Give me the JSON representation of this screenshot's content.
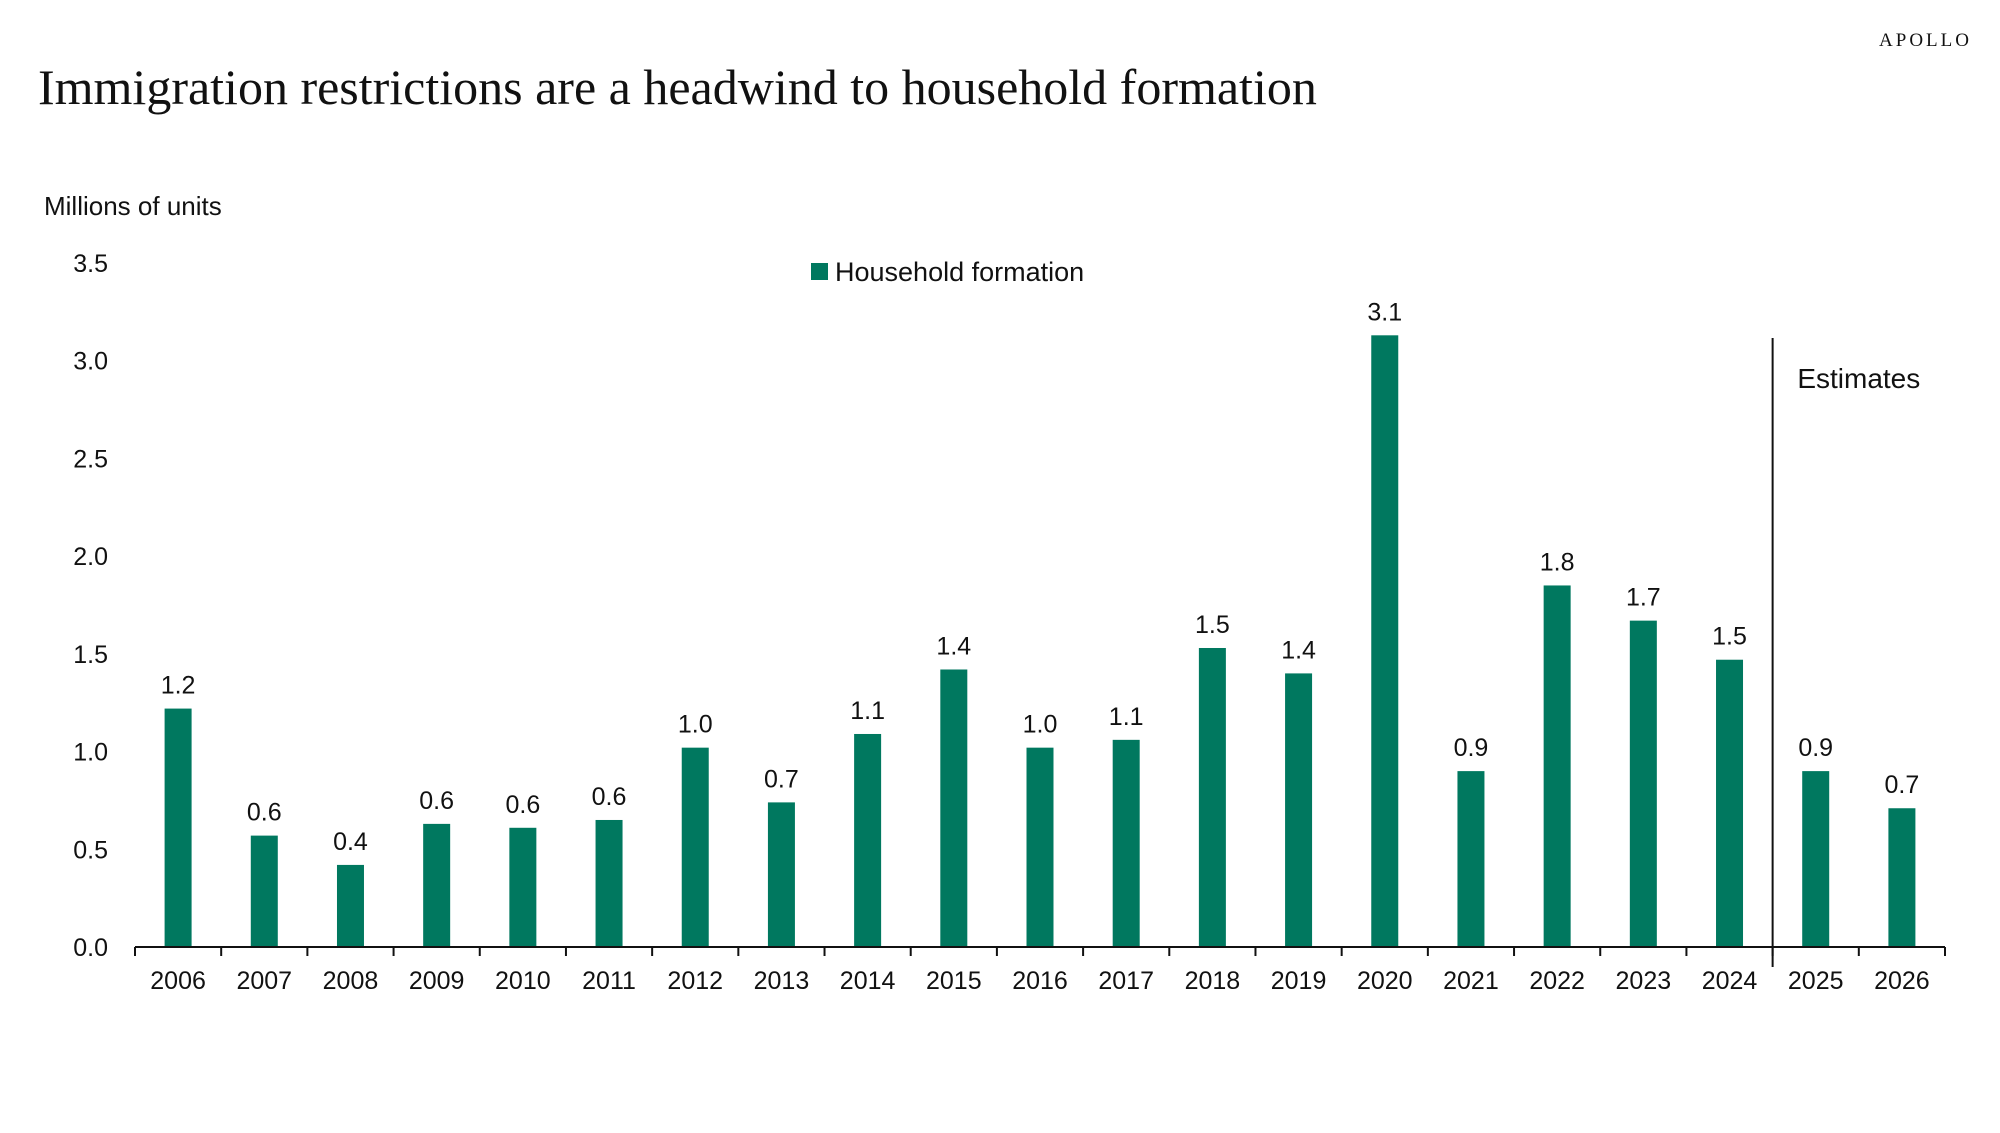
{
  "brand": "APOLLO",
  "title": "Immigration restrictions are a headwind to household formation",
  "chart_data": {
    "type": "bar",
    "title": "Immigration restrictions are a headwind to household formation",
    "ylabel": "Millions of units",
    "xlabel": "",
    "ylim": [
      0,
      3.5
    ],
    "yticks": [
      "0.0",
      "0.5",
      "1.0",
      "1.5",
      "2.0",
      "2.5",
      "3.0",
      "3.5"
    ],
    "categories": [
      "2006",
      "2007",
      "2008",
      "2009",
      "2010",
      "2011",
      "2012",
      "2013",
      "2014",
      "2015",
      "2016",
      "2017",
      "2018",
      "2019",
      "2020",
      "2021",
      "2022",
      "2023",
      "2024",
      "2025",
      "2026"
    ],
    "series": [
      {
        "name": "Household formation",
        "color": "#00785F",
        "values": [
          1.22,
          0.57,
          0.42,
          0.63,
          0.61,
          0.65,
          1.02,
          0.74,
          1.09,
          1.42,
          1.02,
          1.06,
          1.53,
          1.4,
          3.13,
          0.9,
          1.85,
          1.67,
          1.47,
          0.9,
          0.71
        ],
        "labels": [
          "1.2",
          "0.6",
          "0.4",
          "0.6",
          "0.6",
          "0.6",
          "1.0",
          "0.7",
          "1.1",
          "1.4",
          "1.0",
          "1.1",
          "1.5",
          "1.4",
          "3.1",
          "0.9",
          "1.8",
          "1.7",
          "1.5",
          "0.9",
          "0.7"
        ]
      }
    ],
    "legend": {
      "position": "top-center"
    },
    "annotation": {
      "text": "Estimates",
      "from_category": "2025"
    },
    "grid": false
  }
}
